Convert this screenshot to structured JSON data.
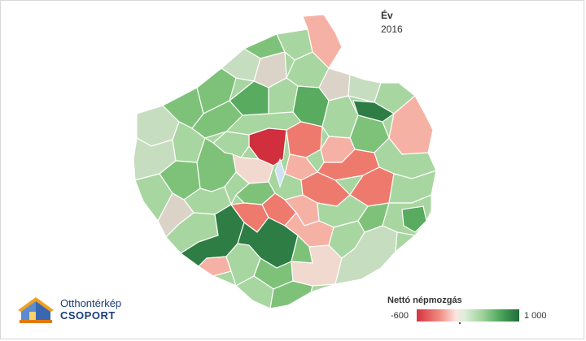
{
  "year_label": "Év",
  "year_value": "2016",
  "legend": {
    "title": "Nettó népmozgás",
    "min_label": "-600",
    "max_label": "1 000",
    "min_value": -600,
    "max_value": 1000,
    "low_color": "#d6333f",
    "mid_color": "#f2f2f2",
    "high_color": "#1f6b3a"
  },
  "logo": {
    "line1": "Otthontérkép",
    "line2": "CSOPORT"
  },
  "map": {
    "region_count_hint": "Budapest agglomeration municipalities",
    "colors": {
      "dark_red": "#d12e3e",
      "red": "#ee7a6e",
      "light_red": "#f6b1a5",
      "pale": "#f1d9cf",
      "neutral": "#dcd3c8",
      "pale_green": "#c7ddbf",
      "light_green": "#a8d6a0",
      "green": "#7ec27a",
      "mid_green": "#59ab60",
      "dark_green": "#2e7d45",
      "river": "#cfe3f2"
    }
  }
}
